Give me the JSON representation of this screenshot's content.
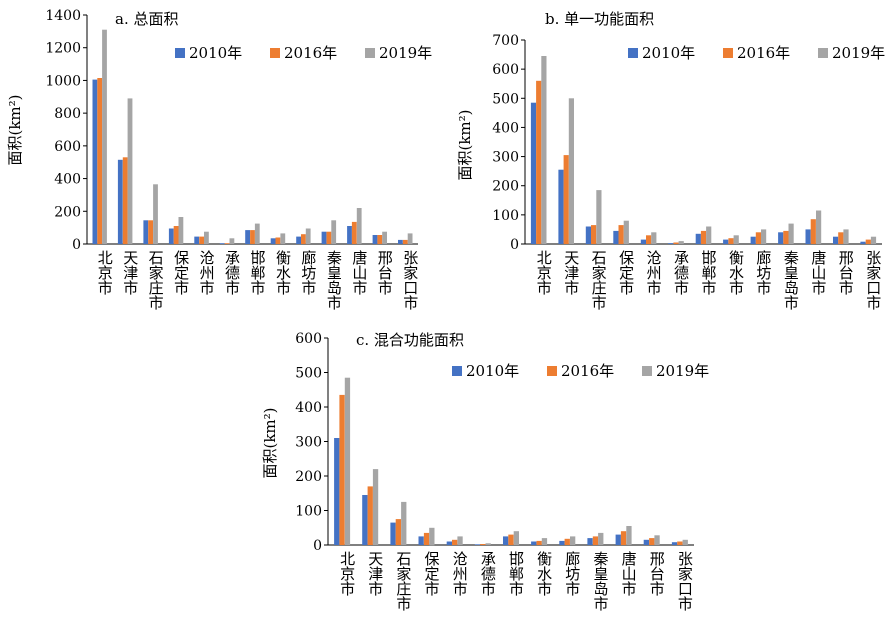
{
  "legend": [
    "2010年",
    "2016年",
    "2019年"
  ],
  "colors": {
    "2010年": "#4472C4",
    "2016年": "#ED7D31",
    "2019年": "#A5A5A5"
  },
  "chart_data": [
    {
      "type": "bar",
      "title": "a. 总面积",
      "ylabel": "面积(km²)",
      "ylim": [
        0,
        1400
      ],
      "yticks": [
        0,
        200,
        400,
        600,
        800,
        1000,
        1200,
        1400
      ],
      "categories": [
        "北京市",
        "天津市",
        "石家庄市",
        "保定市",
        "沧州市",
        "承德市",
        "邯郸市",
        "衡水市",
        "廊坊市",
        "秦皇岛市",
        "唐山市",
        "邢台市",
        "张家口市"
      ],
      "series": [
        {
          "name": "2010年",
          "values": [
            1005,
            515,
            145,
            95,
            45,
            5,
            85,
            35,
            45,
            75,
            110,
            55,
            25
          ]
        },
        {
          "name": "2016年",
          "values": [
            1015,
            530,
            145,
            110,
            45,
            5,
            85,
            40,
            60,
            75,
            135,
            55,
            25
          ]
        },
        {
          "name": "2019年",
          "values": [
            1310,
            890,
            365,
            165,
            75,
            35,
            125,
            65,
            95,
            145,
            220,
            75,
            65
          ]
        }
      ]
    },
    {
      "type": "bar",
      "title": "b. 单一功能面积",
      "ylabel": "面积(km²)",
      "ylim": [
        0,
        700
      ],
      "yticks": [
        0,
        100,
        200,
        300,
        400,
        500,
        600,
        700
      ],
      "categories": [
        "北京市",
        "天津市",
        "石家庄市",
        "保定市",
        "沧州市",
        "承德市",
        "邯郸市",
        "衡水市",
        "廊坊市",
        "秦皇岛市",
        "唐山市",
        "邢台市",
        "张家口市"
      ],
      "series": [
        {
          "name": "2010年",
          "values": [
            485,
            255,
            60,
            45,
            15,
            3,
            35,
            15,
            25,
            40,
            50,
            25,
            8
          ]
        },
        {
          "name": "2016年",
          "values": [
            560,
            305,
            65,
            65,
            30,
            5,
            45,
            20,
            40,
            45,
            85,
            40,
            15
          ]
        },
        {
          "name": "2019年",
          "values": [
            645,
            500,
            185,
            80,
            40,
            10,
            60,
            30,
            50,
            70,
            115,
            50,
            25
          ]
        }
      ]
    },
    {
      "type": "bar",
      "title": "c. 混合功能面积",
      "ylabel": "面积(km²)",
      "ylim": [
        0,
        600
      ],
      "yticks": [
        0,
        100,
        200,
        300,
        400,
        500,
        600
      ],
      "categories": [
        "北京市",
        "天津市",
        "石家庄市",
        "保定市",
        "沧州市",
        "承德市",
        "邯郸市",
        "衡水市",
        "廊坊市",
        "秦皇岛市",
        "唐山市",
        "邢台市",
        "张家口市"
      ],
      "series": [
        {
          "name": "2010年",
          "values": [
            310,
            145,
            65,
            25,
            10,
            2,
            25,
            10,
            12,
            20,
            30,
            15,
            8
          ]
        },
        {
          "name": "2016年",
          "values": [
            435,
            170,
            75,
            35,
            15,
            3,
            30,
            12,
            18,
            25,
            40,
            20,
            10
          ]
        },
        {
          "name": "2019年",
          "values": [
            485,
            220,
            125,
            50,
            25,
            5,
            40,
            20,
            25,
            35,
            55,
            28,
            15
          ]
        }
      ]
    }
  ]
}
